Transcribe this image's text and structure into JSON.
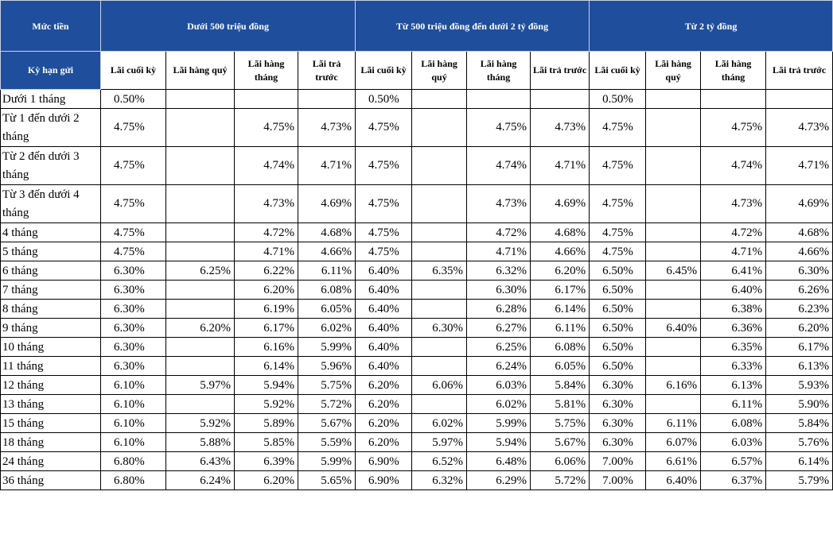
{
  "header": {
    "amount_label": "Mức tiền",
    "groups": [
      "Dưới 500 triệu đồng",
      "Từ 500 triệu đồng đến dưới 2 tỷ đồng",
      "Từ 2 tỷ đồng"
    ],
    "term_label": "Kỳ hạn gửi",
    "subcolumns": [
      "Lãi cuối kỳ",
      "Lãi hàng quý",
      "Lãi hàng tháng",
      "Lãi trả trước"
    ]
  },
  "rows": [
    {
      "term": "Dưới 1 tháng",
      "v": [
        "0.50%",
        "",
        "",
        "",
        "0.50%",
        "",
        "",
        "",
        "0.50%",
        "",
        "",
        ""
      ]
    },
    {
      "term": "Từ 1 đến dưới 2 tháng",
      "v": [
        "4.75%",
        "",
        "4.75%",
        "4.73%",
        "4.75%",
        "",
        "4.75%",
        "4.73%",
        "4.75%",
        "",
        "4.75%",
        "4.73%"
      ]
    },
    {
      "term": "Từ 2 đến dưới 3 tháng",
      "v": [
        "4.75%",
        "",
        "4.74%",
        "4.71%",
        "4.75%",
        "",
        "4.74%",
        "4.71%",
        "4.75%",
        "",
        "4.74%",
        "4.71%"
      ]
    },
    {
      "term": "Từ 3 đến dưới 4 tháng",
      "v": [
        "4.75%",
        "",
        "4.73%",
        "4.69%",
        "4.75%",
        "",
        "4.73%",
        "4.69%",
        "4.75%",
        "",
        "4.73%",
        "4.69%"
      ]
    },
    {
      "term": "4 tháng",
      "v": [
        "4.75%",
        "",
        "4.72%",
        "4.68%",
        "4.75%",
        "",
        "4.72%",
        "4.68%",
        "4.75%",
        "",
        "4.72%",
        "4.68%"
      ]
    },
    {
      "term": "5 tháng",
      "v": [
        "4.75%",
        "",
        "4.71%",
        "4.66%",
        "4.75%",
        "",
        "4.71%",
        "4.66%",
        "4.75%",
        "",
        "4.71%",
        "4.66%"
      ]
    },
    {
      "term": "6 tháng",
      "v": [
        "6.30%",
        "6.25%",
        "6.22%",
        "6.11%",
        "6.40%",
        "6.35%",
        "6.32%",
        "6.20%",
        "6.50%",
        "6.45%",
        "6.41%",
        "6.30%"
      ]
    },
    {
      "term": "7 tháng",
      "v": [
        "6.30%",
        "",
        "6.20%",
        "6.08%",
        "6.40%",
        "",
        "6.30%",
        "6.17%",
        "6.50%",
        "",
        "6.40%",
        "6.26%"
      ]
    },
    {
      "term": "8 tháng",
      "v": [
        "6.30%",
        "",
        "6.19%",
        "6.05%",
        "6.40%",
        "",
        "6.28%",
        "6.14%",
        "6.50%",
        "",
        "6.38%",
        "6.23%"
      ]
    },
    {
      "term": "9 tháng",
      "v": [
        "6.30%",
        "6.20%",
        "6.17%",
        "6.02%",
        "6.40%",
        "6.30%",
        "6.27%",
        "6.11%",
        "6.50%",
        "6.40%",
        "6.36%",
        "6.20%"
      ]
    },
    {
      "term": "10 tháng",
      "v": [
        "6.30%",
        "",
        "6.16%",
        "5.99%",
        "6.40%",
        "",
        "6.25%",
        "6.08%",
        "6.50%",
        "",
        "6.35%",
        "6.17%"
      ]
    },
    {
      "term": "11 tháng",
      "v": [
        "6.30%",
        "",
        "6.14%",
        "5.96%",
        "6.40%",
        "",
        "6.24%",
        "6.05%",
        "6.50%",
        "",
        "6.33%",
        "6.13%"
      ]
    },
    {
      "term": "12 tháng",
      "v": [
        "6.10%",
        "5.97%",
        "5.94%",
        "5.75%",
        "6.20%",
        "6.06%",
        "6.03%",
        "5.84%",
        "6.30%",
        "6.16%",
        "6.13%",
        "5.93%"
      ]
    },
    {
      "term": "13 tháng",
      "v": [
        "6.10%",
        "",
        "5.92%",
        "5.72%",
        "6.20%",
        "",
        "6.02%",
        "5.81%",
        "6.30%",
        "",
        "6.11%",
        "5.90%"
      ]
    },
    {
      "term": "15 tháng",
      "v": [
        "6.10%",
        "5.92%",
        "5.89%",
        "5.67%",
        "6.20%",
        "6.02%",
        "5.99%",
        "5.75%",
        "6.30%",
        "6.11%",
        "6.08%",
        "5.84%"
      ]
    },
    {
      "term": "18 tháng",
      "v": [
        "6.10%",
        "5.88%",
        "5.85%",
        "5.59%",
        "6.20%",
        "5.97%",
        "5.94%",
        "5.67%",
        "6.30%",
        "6.07%",
        "6.03%",
        "5.76%"
      ]
    },
    {
      "term": "24 tháng",
      "v": [
        "6.80%",
        "6.43%",
        "6.39%",
        "5.99%",
        "6.90%",
        "6.52%",
        "6.48%",
        "6.06%",
        "7.00%",
        "6.61%",
        "6.57%",
        "6.14%"
      ]
    },
    {
      "term": "36 tháng",
      "v": [
        "6.80%",
        "6.24%",
        "6.20%",
        "5.65%",
        "6.90%",
        "6.32%",
        "6.29%",
        "5.72%",
        "7.00%",
        "6.40%",
        "6.37%",
        "5.79%"
      ]
    }
  ]
}
